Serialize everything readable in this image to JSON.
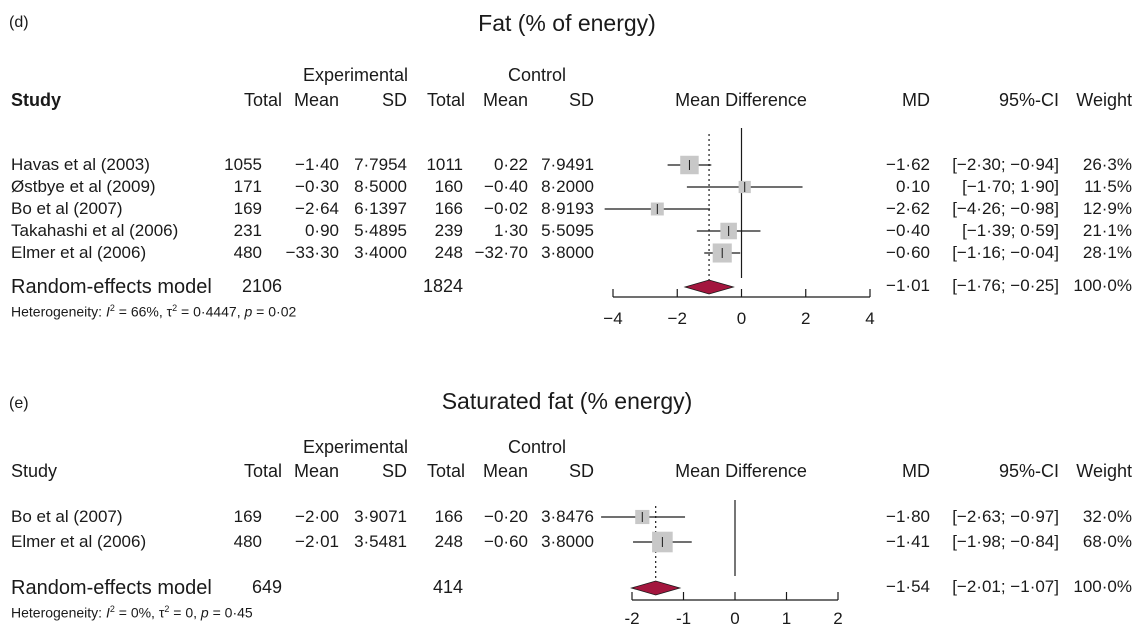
{
  "chart_data": [
    {
      "type": "forest",
      "panel_label": "(d)",
      "title": "Fat (% of energy)",
      "headers": {
        "experimental": "Experimental",
        "control": "Control",
        "study": "Study",
        "total": "Total",
        "mean": "Mean",
        "sd": "SD",
        "mean_difference": "Mean Difference",
        "md": "MD",
        "ci": "95%-CI",
        "weight": "Weight"
      },
      "xlim": [
        -4,
        4
      ],
      "ticks": [
        "−4",
        "−2",
        "0",
        "2",
        "4"
      ],
      "tick_values": [
        -4,
        -2,
        0,
        2,
        4
      ],
      "studies": [
        {
          "study": "Havas et al (2003)",
          "e_total": "1055",
          "e_mean": "−1·40",
          "e_sd": "7·7954",
          "c_total": "1011",
          "c_mean": "0·22",
          "c_sd": "7·9491",
          "md_text": "−1·62",
          "ci_text": "[−2·30; −0·94]",
          "weight_text": "26·3%",
          "md": -1.62,
          "lower": -2.3,
          "upper": -0.94,
          "weight": 26.3
        },
        {
          "study": "Østbye et al (2009)",
          "e_total": "171",
          "e_mean": "−0·30",
          "e_sd": "8·5000",
          "c_total": "160",
          "c_mean": "−0·40",
          "c_sd": "8·2000",
          "md_text": "0·10",
          "ci_text": "[−1·70;  1·90]",
          "weight_text": "11·5%",
          "md": 0.1,
          "lower": -1.7,
          "upper": 1.9,
          "weight": 11.5
        },
        {
          "study": "Bo et al (2007)",
          "e_total": "169",
          "e_mean": "−2·64",
          "e_sd": "6·1397",
          "c_total": "166",
          "c_mean": "−0·02",
          "c_sd": "8·9193",
          "md_text": "−2·62",
          "ci_text": "[−4·26; −0·98]",
          "weight_text": "12·9%",
          "md": -2.62,
          "lower": -4.26,
          "upper": -0.98,
          "weight": 12.9
        },
        {
          "study": "Takahashi et al (2006)",
          "e_total": "231",
          "e_mean": "0·90",
          "e_sd": "5·4895",
          "c_total": "239",
          "c_mean": "1·30",
          "c_sd": "5·5095",
          "md_text": "−0·40",
          "ci_text": "[−1·39;  0·59]",
          "weight_text": "21·1%",
          "md": -0.4,
          "lower": -1.39,
          "upper": 0.59,
          "weight": 21.1
        },
        {
          "study": "Elmer et al (2006)",
          "e_total": "480",
          "e_mean": "−33·30",
          "e_sd": "3·4000",
          "c_total": "248",
          "c_mean": "−32·70",
          "c_sd": "3·8000",
          "md_text": "−0·60",
          "ci_text": "[−1·16; −0·04]",
          "weight_text": "28·1%",
          "md": -0.6,
          "lower": -1.16,
          "upper": -0.04,
          "weight": 28.1
        }
      ],
      "pooled": {
        "label": "Random-effects model",
        "e_total": "2106",
        "c_total": "1824",
        "md_text": "−1·01",
        "ci_text": "[−1·76; −0·25]",
        "weight_text": "100·0%",
        "md": -1.01,
        "lower": -1.76,
        "upper": -0.25
      },
      "heterogeneity": {
        "prefix": "Heterogeneity: ",
        "i2": " = 66%, ",
        "tau2": " = 0·4447, ",
        "p": " = 0·02"
      },
      "colors": {
        "box": "#c8c8c8",
        "diamond": "#a3163e",
        "line": "#1a1a1a"
      }
    },
    {
      "type": "forest",
      "panel_label": "(e)",
      "title": "Saturated fat (% energy)",
      "headers": {
        "experimental": "Experimental",
        "control": "Control",
        "study": "Study",
        "total": "Total",
        "mean": "Mean",
        "sd": "SD",
        "mean_difference": "Mean Difference",
        "md": "MD",
        "ci": "95%-CI",
        "weight": "Weight"
      },
      "xlim": [
        -2,
        2
      ],
      "ticks": [
        "-2",
        "-1",
        "0",
        "1",
        "2"
      ],
      "tick_values": [
        -2,
        -1,
        0,
        1,
        2
      ],
      "studies": [
        {
          "study": "Bo et al (2007)",
          "e_total": "169",
          "e_mean": "−2·00",
          "e_sd": "3·9071",
          "c_total": "166",
          "c_mean": "−0·20",
          "c_sd": "3·8476",
          "md_text": "−1·80",
          "ci_text": "[−2·63; −0·97]",
          "weight_text": "32·0%",
          "md": -1.8,
          "lower": -2.63,
          "upper": -0.97,
          "weight": 32.0
        },
        {
          "study": "Elmer et al (2006)",
          "e_total": "480",
          "e_mean": "−2·01",
          "e_sd": "3·5481",
          "c_total": "248",
          "c_mean": "−0·60",
          "c_sd": "3·8000",
          "md_text": "−1·41",
          "ci_text": "[−1·98; −0·84]",
          "weight_text": "68·0%",
          "md": -1.41,
          "lower": -1.98,
          "upper": -0.84,
          "weight": 68.0
        }
      ],
      "pooled": {
        "label": "Random-effects model",
        "e_total": "649",
        "c_total": "414",
        "md_text": "−1·54",
        "ci_text": "[−2·01; −1·07]",
        "weight_text": "100·0%",
        "md": -1.54,
        "lower": -2.01,
        "upper": -1.07
      },
      "heterogeneity": {
        "prefix": "Heterogeneity: ",
        "i2": " = 0%, ",
        "tau2": " = 0, ",
        "p": " = 0·45"
      },
      "colors": {
        "box": "#c8c8c8",
        "diamond": "#a3163e",
        "line": "#1a1a1a"
      }
    }
  ]
}
